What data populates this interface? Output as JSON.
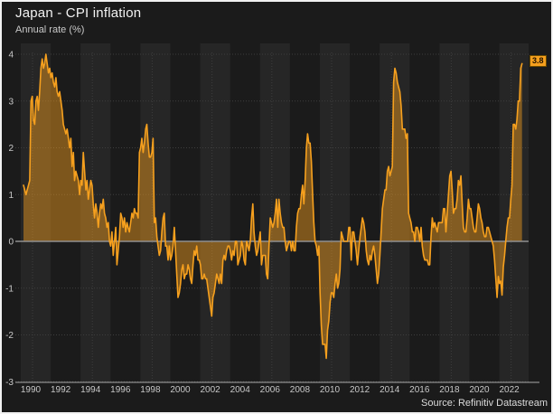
{
  "chart_data": {
    "type": "area",
    "title": "Japan - CPI inflation",
    "subtitle": "Annual rate (%)",
    "frequency": "monthly",
    "series_start": "1989-07",
    "series_end": "2022-11",
    "last_value_label": "3.8",
    "source": "Source: Refinitiv Datastream",
    "xlabel": "",
    "ylabel": "Annual rate (%)",
    "ylim": [
      -3,
      4
    ],
    "grid": true,
    "legend": "none",
    "y_ticks": [
      4,
      3,
      2,
      1,
      0,
      -1,
      -2,
      -3
    ],
    "x_tick_labels": [
      "1990",
      "1992",
      "1994",
      "1996",
      "1998",
      "2000",
      "2002",
      "2004",
      "2006",
      "2008",
      "2010",
      "2012",
      "2014",
      "2016",
      "2018",
      "2020",
      "2022"
    ],
    "values": [
      1.2,
      1.1,
      1.0,
      1.1,
      1.2,
      1.3,
      3.0,
      3.1,
      2.6,
      2.5,
      3.0,
      3.1,
      2.8,
      3.2,
      3.7,
      3.9,
      3.7,
      3.8,
      4.0,
      3.8,
      3.6,
      3.7,
      3.5,
      3.6,
      3.4,
      3.3,
      3.5,
      3.2,
      3.1,
      3.2,
      3.0,
      2.8,
      2.5,
      2.4,
      2.3,
      2.4,
      2.2,
      2.0,
      2.2,
      1.6,
      1.9,
      1.3,
      1.5,
      1.4,
      1.3,
      1.0,
      1.3,
      1.2,
      1.9,
      1.5,
      1.1,
      1.3,
      0.9,
      1.1,
      1.3,
      1.2,
      0.8,
      0.5,
      0.8,
      0.6,
      0.3,
      0.6,
      0.8,
      0.7,
      0.9,
      0.6,
      0.5,
      0.3,
      0.4,
      0.0,
      -0.1,
      0.2,
      -0.3,
      0.0,
      0.3,
      -0.5,
      -0.2,
      0.1,
      0.6,
      0.5,
      0.3,
      0.5,
      0.2,
      0.4,
      0.3,
      0.2,
      0.4,
      0.6,
      0.5,
      0.7,
      0.6,
      0.6,
      0.5,
      1.9,
      2.0,
      2.2,
      1.9,
      2.1,
      2.4,
      2.5,
      2.1,
      1.8,
      1.8,
      1.9,
      2.2,
      0.4,
      0.5,
      0.1,
      -0.1,
      -0.3,
      -0.2,
      0.2,
      0.5,
      0.6,
      -0.1,
      -0.1,
      -0.4,
      -0.1,
      -0.4,
      -0.3,
      -0.1,
      0.3,
      -0.2,
      -0.7,
      -1.2,
      -1.1,
      -0.9,
      -0.6,
      -0.5,
      -0.8,
      -0.7,
      -0.7,
      -0.5,
      -0.6,
      -0.8,
      -0.9,
      -0.5,
      -0.2,
      -0.3,
      -0.1,
      -0.4,
      -0.4,
      -0.5,
      -0.8,
      -0.8,
      -0.7,
      -0.8,
      -0.8,
      -1.0,
      -1.2,
      -1.4,
      -1.6,
      -1.2,
      -1.1,
      -0.9,
      -0.7,
      -0.8,
      -0.9,
      -0.7,
      -0.9,
      -0.4,
      -0.3,
      -0.4,
      -0.2,
      -0.1,
      -0.1,
      -0.2,
      -0.4,
      -0.2,
      -0.3,
      0.0,
      0.0,
      -0.5,
      -0.4,
      -0.3,
      0.0,
      -0.1,
      -0.4,
      -0.5,
      0.0,
      -0.1,
      -0.2,
      0.0,
      0.5,
      0.8,
      0.2,
      -0.1,
      -0.3,
      -0.2,
      0.0,
      0.2,
      -0.5,
      -0.3,
      -0.3,
      -0.3,
      -0.7,
      -0.8,
      -0.1,
      0.5,
      0.4,
      0.3,
      0.4,
      0.6,
      0.9,
      0.3,
      0.9,
      0.6,
      0.4,
      0.3,
      0.3,
      0.0,
      -0.2,
      -0.1,
      0.0,
      0.0,
      -0.2,
      0.0,
      -0.2,
      -0.2,
      0.3,
      0.6,
      0.7,
      0.7,
      1.0,
      1.2,
      0.8,
      1.3,
      2.0,
      2.3,
      2.1,
      2.1,
      1.7,
      1.0,
      0.4,
      0.0,
      -0.1,
      -0.3,
      -0.1,
      -1.1,
      -1.8,
      -2.2,
      -2.2,
      -2.2,
      -2.5,
      -1.9,
      -1.7,
      -1.3,
      -1.1,
      -1.1,
      -1.2,
      -0.9,
      -0.7,
      -1.0,
      -0.9,
      -0.6,
      0.2,
      0.1,
      0.0,
      0.0,
      0.0,
      0.0,
      0.3,
      0.3,
      -0.4,
      0.2,
      0.2,
      0.0,
      -0.2,
      -0.5,
      -0.2,
      0.1,
      0.3,
      0.5,
      0.4,
      0.2,
      -0.2,
      -0.4,
      -0.5,
      -0.3,
      -0.4,
      -0.2,
      -0.1,
      -0.3,
      -0.6,
      -0.9,
      -0.7,
      -0.3,
      0.2,
      0.7,
      0.9,
      1.1,
      1.1,
      1.5,
      1.6,
      1.4,
      1.5,
      1.6,
      3.4,
      3.7,
      3.6,
      3.4,
      3.3,
      3.2,
      2.9,
      2.4,
      2.4,
      2.4,
      2.2,
      2.3,
      0.6,
      0.5,
      0.4,
      0.2,
      0.2,
      0.0,
      0.3,
      0.3,
      0.2,
      0.0,
      0.3,
      -0.1,
      -0.3,
      -0.4,
      -0.4,
      -0.4,
      -0.5,
      -0.5,
      0.1,
      0.5,
      0.3,
      0.4,
      0.3,
      0.2,
      0.4,
      0.4,
      0.4,
      0.4,
      0.7,
      0.7,
      0.2,
      0.6,
      1.0,
      1.4,
      1.5,
      1.1,
      0.6,
      0.7,
      0.7,
      0.9,
      1.3,
      1.2,
      1.4,
      0.8,
      0.3,
      0.2,
      0.2,
      0.5,
      0.9,
      0.7,
      0.7,
      0.5,
      0.3,
      0.2,
      0.2,
      0.5,
      0.8,
      0.7,
      0.5,
      0.4,
      0.2,
      0.1,
      0.1,
      0.3,
      0.3,
      0.2,
      0.1,
      0.0,
      -0.1,
      -0.4,
      -0.8,
      -1.2,
      -0.75,
      -0.9,
      -0.85,
      -1.15,
      -0.55,
      -0.3,
      0.0,
      0.3,
      0.5,
      0.5,
      0.9,
      1.2,
      2.5,
      2.5,
      2.4,
      2.6,
      3.0,
      3.0,
      3.7,
      3.8
    ],
    "colors": {
      "background": "#1b1b1b",
      "band": "rgba(255,255,255,0.05)",
      "grid": "#3e3e3e",
      "zero_line": "#8f8f8f",
      "axis": "#a8a8a8",
      "tick_text": "#c8c8c8",
      "line": "#F6A01E",
      "fill": "rgba(246,160,30,0.45)",
      "chip_bg": "#F6A01E",
      "chip_text": "#221200"
    }
  }
}
